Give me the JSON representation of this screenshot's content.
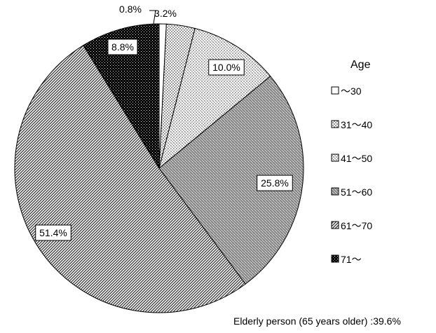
{
  "chart_data": {
    "type": "pie",
    "legend_title": "Age",
    "legend_position": "right",
    "categories": [
      "～30",
      "31～40",
      "41～50",
      "51～60",
      "61～70",
      "71～"
    ],
    "values": [
      0.8,
      3.2,
      10.0,
      25.8,
      51.4,
      8.8
    ],
    "labels": [
      "0.8%",
      "3.2%",
      "10.0%",
      "25.8%",
      "51.4%",
      "8.8%"
    ],
    "patterns": [
      "solid-white",
      "fine-dots",
      "light-speckle",
      "medium-speckle",
      "diagonal-hatch",
      "solid-black-speckle"
    ],
    "slice_colors": [
      "#ffffff",
      "#f2f2f2",
      "#e0e0e0",
      "#9a9a9a",
      "#7a7a7a",
      "#111111"
    ],
    "footnote": "Elderly person (65 years older) :39.6%"
  }
}
